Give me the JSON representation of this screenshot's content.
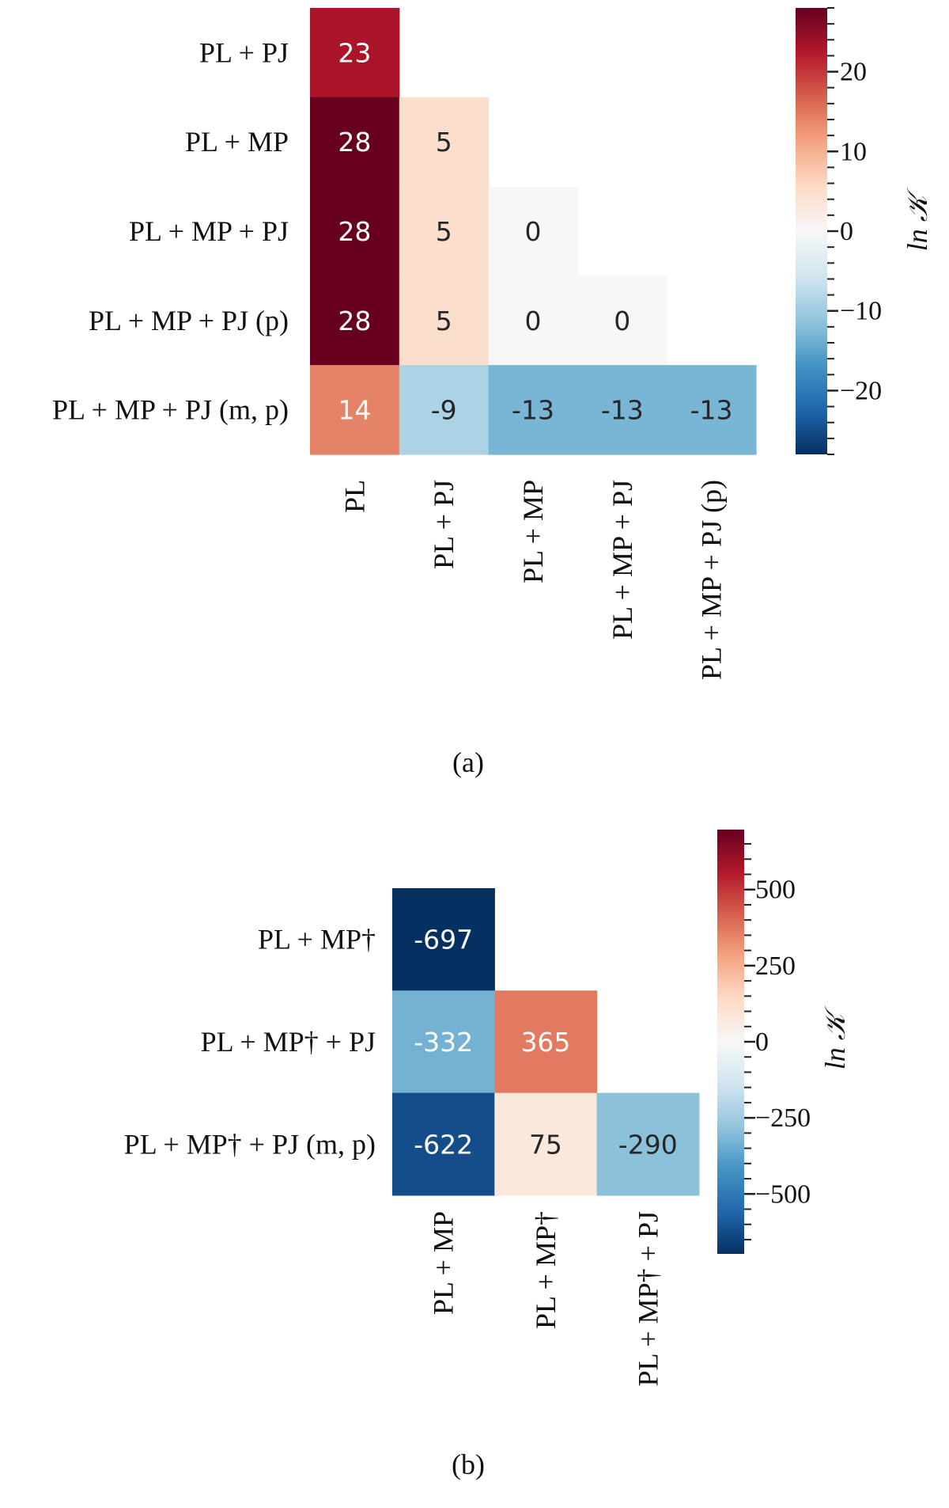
{
  "colormap": [
    "#053061",
    "#2166ac",
    "#4393c3",
    "#92c5de",
    "#d1e5f0",
    "#f7f7f7",
    "#fddbc7",
    "#f4a582",
    "#d6604d",
    "#b2182b",
    "#67001f"
  ],
  "chart_data": [
    {
      "type": "heatmap",
      "caption": "(a)",
      "rows": [
        "PL + PJ",
        "PL + MP",
        "PL + MP + PJ",
        "PL + MP + PJ (p)",
        "PL + MP + PJ (m, p)"
      ],
      "columns": [
        "PL",
        "PL + PJ",
        "PL + MP",
        "PL + MP + PJ",
        "PL + MP + PJ (p)"
      ],
      "values": [
        [
          23,
          null,
          null,
          null,
          null
        ],
        [
          28,
          5,
          null,
          null,
          null
        ],
        [
          28,
          5,
          0,
          null,
          null
        ],
        [
          28,
          5,
          0,
          0,
          null
        ],
        [
          14,
          -9,
          -13,
          -13,
          -13
        ]
      ],
      "colorbar": {
        "label": "ln 𝒦",
        "range": [
          -28,
          28
        ],
        "ticks": [
          20,
          10,
          0,
          -10,
          -20
        ],
        "tick_labels": [
          "20",
          "10",
          "0",
          "−10",
          "−20"
        ],
        "minor_step": 2
      }
    },
    {
      "type": "heatmap",
      "caption": "(b)",
      "rows": [
        "PL + MP†",
        "PL + MP† + PJ",
        "PL + MP† + PJ (m, p)"
      ],
      "columns": [
        "PL + MP",
        "PL + MP†",
        "PL + MP† + PJ"
      ],
      "values": [
        [
          -697,
          null,
          null
        ],
        [
          -332,
          365,
          null
        ],
        [
          -622,
          75,
          -290
        ]
      ],
      "colorbar": {
        "label": "ln 𝒦",
        "range": [
          -697,
          697
        ],
        "ticks": [
          500,
          250,
          0,
          -250,
          -500
        ],
        "tick_labels": [
          "500",
          "250",
          "0",
          "−250",
          "−500"
        ],
        "minor_step": 50
      }
    }
  ]
}
